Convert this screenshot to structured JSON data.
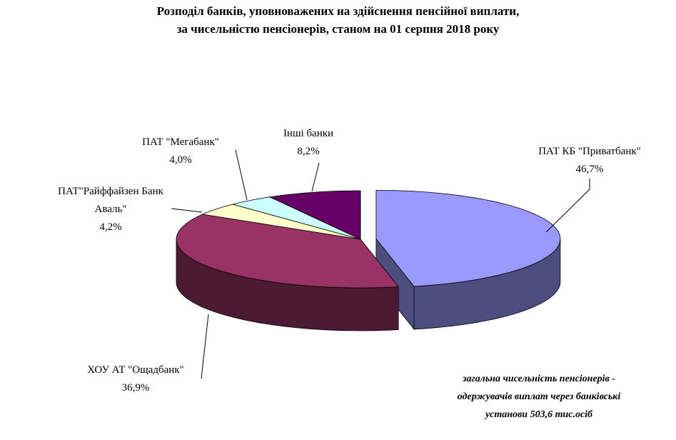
{
  "chart_data": {
    "type": "pie3d",
    "title": "Розподіл банків, уповноважених на здійснення пенсійної виплати,",
    "subtitle": "за чисельністю пенсіонерів, станом на 01 серпня  2018 року",
    "categories": [
      "ПАТ КБ \"Приватбанк\"",
      "ХОУ АТ \"Ощадбанк\"",
      "ПАТ\"Райффайзен Банк Аваль\"",
      "ПАТ \"Мегабанк\"",
      "Інші банки"
    ],
    "values": [
      46.7,
      36.9,
      4.2,
      4.0,
      8.2
    ],
    "value_labels": [
      "46,7%",
      "36,9%",
      "4,2%",
      "4,0%",
      "8,2%"
    ],
    "colors": [
      "#9999ff",
      "#993366",
      "#ffffcc",
      "#ccffff",
      "#660066"
    ],
    "side_colors": [
      "#4d4d80",
      "#4d1a33",
      "#808066",
      "#668080",
      "#330033"
    ],
    "note": [
      "загальна чисельність пенсіонерів -",
      "одержувачів виплат через банківські",
      "установи 503,6 тис.осіб"
    ]
  }
}
